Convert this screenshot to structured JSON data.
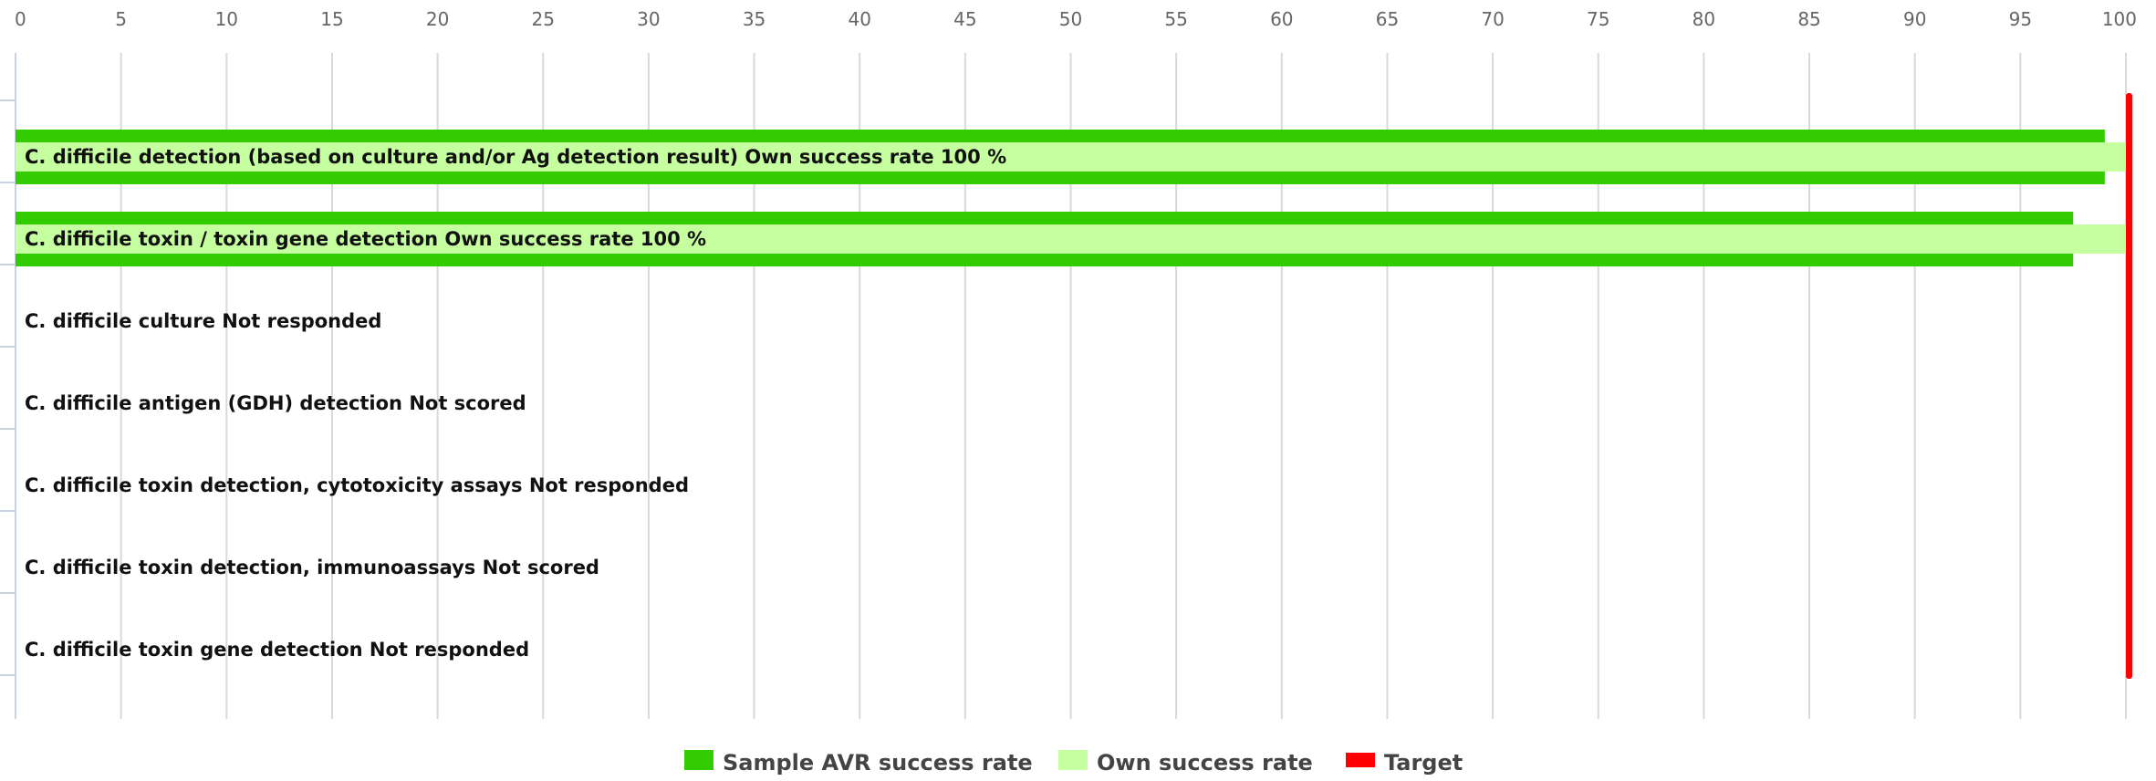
{
  "chart_data": {
    "type": "bar",
    "orientation": "horizontal",
    "categories": [
      "C. difficile detection (based on culture and/or Ag detection result)",
      "C. difficile toxin / toxin gene detection",
      "C. difficile culture",
      "C. difficile antigen (GDH) detection",
      "C. difficile toxin detection, cytotoxicity assays",
      "C. difficile toxin detection, immunoassays",
      "C. difficile toxin gene detection"
    ],
    "status_labels": [
      "Own success rate 100 %",
      "Own success rate 100 %",
      "Not responded",
      "Not scored",
      "Not responded",
      "Not scored",
      "Not responded"
    ],
    "series": [
      {
        "name": "Sample AVR success rate",
        "color": "#33cc00",
        "values": [
          99,
          97.5,
          null,
          null,
          null,
          null,
          null
        ]
      },
      {
        "name": "Own success rate",
        "color": "#c6ffa0",
        "values": [
          100,
          100,
          null,
          null,
          null,
          null,
          null
        ]
      }
    ],
    "target": {
      "name": "Target",
      "color": "#ff0000",
      "value": 100
    },
    "xlim": [
      0,
      100
    ],
    "xticks": [
      0,
      5,
      10,
      15,
      20,
      25,
      30,
      35,
      40,
      45,
      50,
      55,
      60,
      65,
      70,
      75,
      80,
      85,
      90,
      95,
      100
    ],
    "x_axis_position": "top",
    "grid": true,
    "legend_placement": "bottom"
  }
}
